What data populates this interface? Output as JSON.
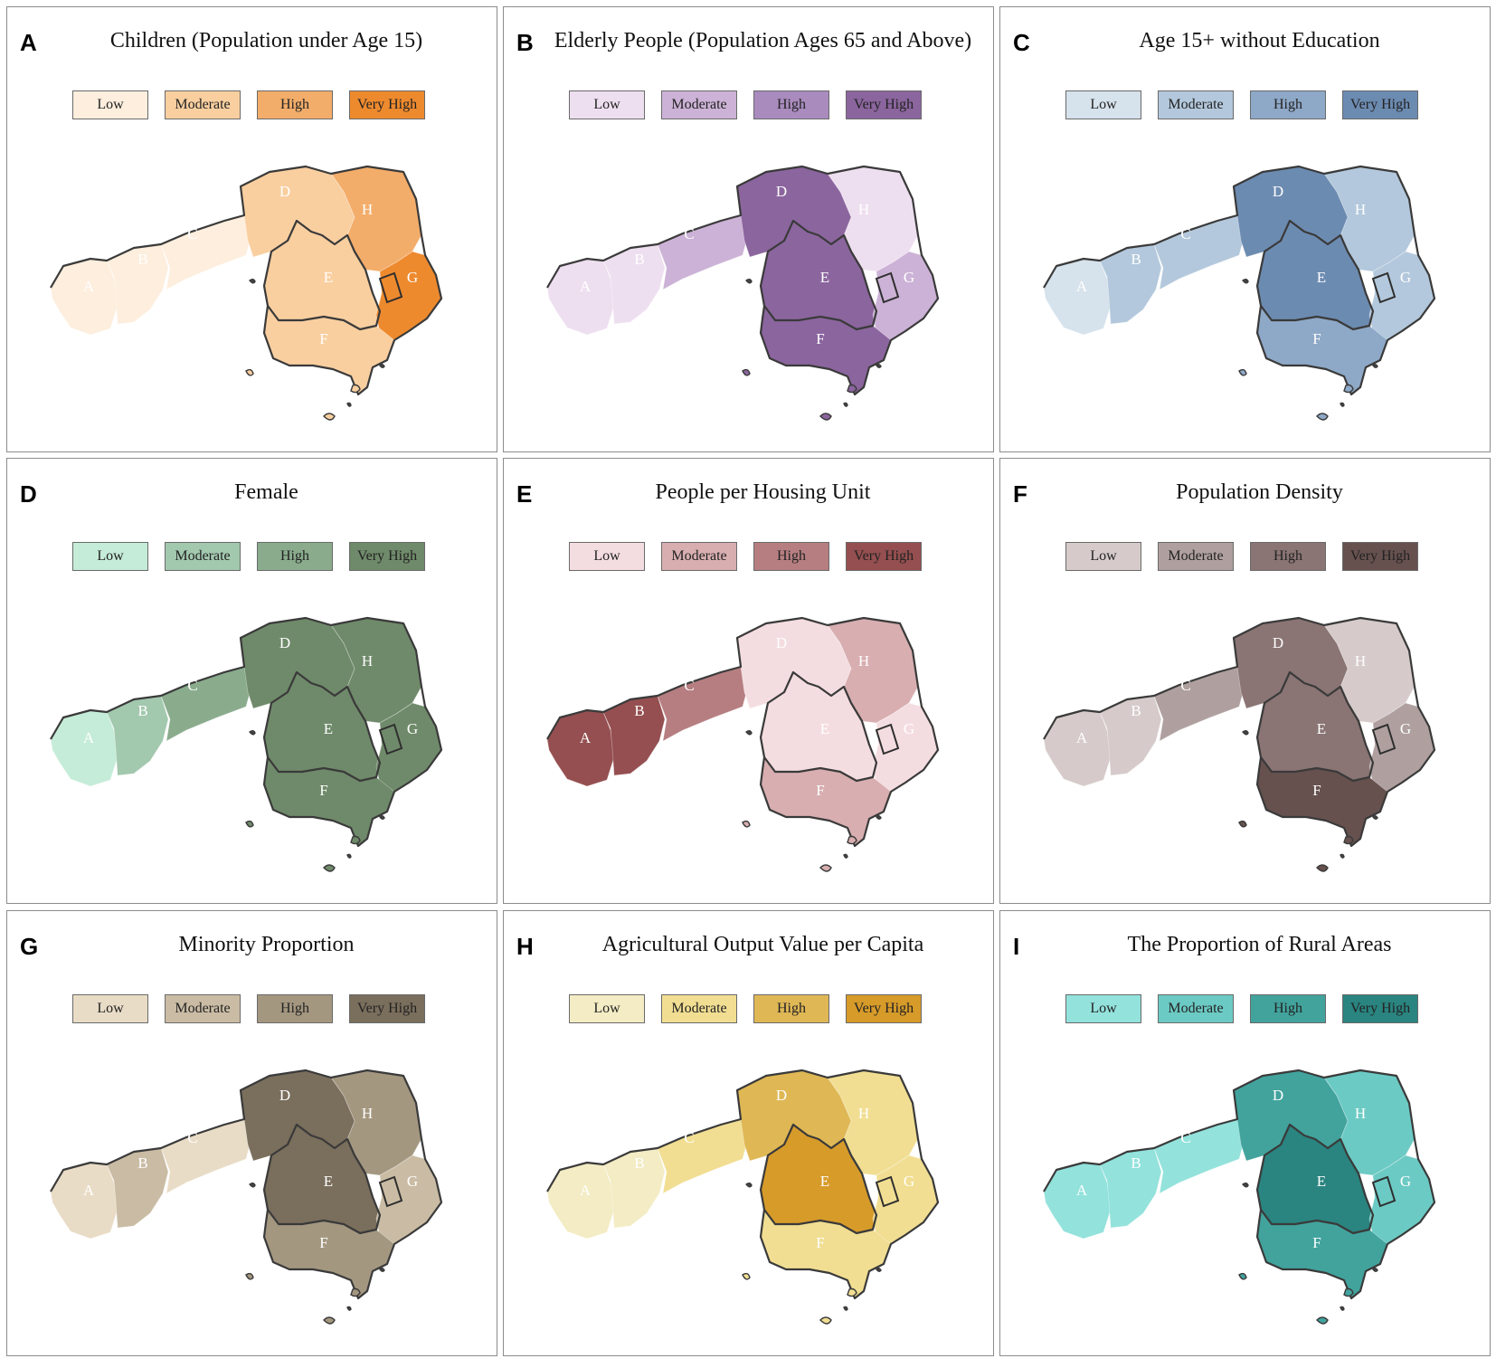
{
  "panels": [
    {
      "letter": "A",
      "title": "Children (Population under Age 15)",
      "legend": [
        "Low",
        "Moderate",
        "High",
        "Very High"
      ],
      "palette": [
        "#fdeedd",
        "#f9cfa0",
        "#f3ad6a",
        "#ee8a2e"
      ],
      "text_light": false,
      "region_levels": {
        "A": "Low",
        "B": "Low",
        "C": "Low",
        "D": "Moderate",
        "E": "Moderate",
        "F": "Moderate",
        "G": "Very High",
        "H": "High"
      }
    },
    {
      "letter": "B",
      "title": "Elderly People (Population Ages 65 and Above)",
      "legend": [
        "Low",
        "Moderate",
        "High",
        "Very High"
      ],
      "palette": [
        "#eedff0",
        "#ccb2d6",
        "#a98bbe",
        "#8b659e"
      ],
      "region_levels": {
        "A": "Low",
        "B": "Low",
        "C": "Moderate",
        "D": "Very High",
        "E": "Very High",
        "F": "Very High",
        "G": "Moderate",
        "H": "Low"
      }
    },
    {
      "letter": "C",
      "title": "Age 15+ without Education",
      "legend": [
        "Low",
        "Moderate",
        "High",
        "Very High"
      ],
      "palette": [
        "#d6e2ec",
        "#b3c8dc",
        "#8ea8c7",
        "#6c8bb1"
      ],
      "region_levels": {
        "A": "Low",
        "B": "Moderate",
        "C": "Moderate",
        "D": "Very High",
        "E": "Very High",
        "F": "High",
        "G": "Moderate",
        "H": "Moderate"
      }
    },
    {
      "letter": "D",
      "title": "Female",
      "legend": [
        "Low",
        "Moderate",
        "High",
        "Very High"
      ],
      "palette": [
        "#c5ecd8",
        "#a2c8ae",
        "#8aac8d",
        "#6f8a6a"
      ],
      "region_levels": {
        "A": "Low",
        "B": "Moderate",
        "C": "High",
        "D": "Very High",
        "E": "Very High",
        "F": "Very High",
        "G": "Very High",
        "H": "Very High"
      }
    },
    {
      "letter": "E",
      "title": "People per Housing Unit",
      "legend": [
        "Low",
        "Moderate",
        "High",
        "Very High"
      ],
      "palette": [
        "#f4dde0",
        "#d8aeb0",
        "#b67e80",
        "#954f50"
      ],
      "region_levels": {
        "A": "Very High",
        "B": "Very High",
        "C": "High",
        "D": "Low",
        "E": "Low",
        "F": "Moderate",
        "G": "Low",
        "H": "Moderate"
      }
    },
    {
      "letter": "F",
      "title": "Population Density",
      "legend": [
        "Low",
        "Moderate",
        "High",
        "Very High"
      ],
      "palette": [
        "#d6cbca",
        "#afa09f",
        "#8a7474",
        "#66514f"
      ],
      "region_levels": {
        "A": "Low",
        "B": "Low",
        "C": "Moderate",
        "D": "High",
        "E": "High",
        "F": "Very High",
        "G": "Moderate",
        "H": "Low"
      }
    },
    {
      "letter": "G",
      "title": "Minority Proportion",
      "legend": [
        "Low",
        "Moderate",
        "High",
        "Very High"
      ],
      "palette": [
        "#e9dcc6",
        "#cabca4",
        "#a49780",
        "#7a6e5c"
      ],
      "region_levels": {
        "A": "Low",
        "B": "Moderate",
        "C": "Low",
        "D": "Very High",
        "E": "Very High",
        "F": "High",
        "G": "Moderate",
        "H": "High"
      }
    },
    {
      "letter": "H",
      "title": "Agricultural Output Value per Capita",
      "legend": [
        "Low",
        "Moderate",
        "High",
        "Very High"
      ],
      "palette": [
        "#f3ecc4",
        "#f1de92",
        "#dfb755",
        "#d79b2a"
      ],
      "region_levels": {
        "A": "Low",
        "B": "Low",
        "C": "Moderate",
        "D": "High",
        "E": "Very High",
        "F": "Moderate",
        "G": "Moderate",
        "H": "Moderate"
      }
    },
    {
      "letter": "I",
      "title": "The Proportion of Rural Areas",
      "legend": [
        "Low",
        "Moderate",
        "High",
        "Very High"
      ],
      "palette": [
        "#93e2dc",
        "#6ccac4",
        "#42a39d",
        "#2a8480"
      ],
      "region_levels": {
        "A": "Low",
        "B": "Low",
        "C": "Low",
        "D": "High",
        "E": "Very High",
        "F": "High",
        "G": "Moderate",
        "H": "Moderate"
      }
    }
  ]
}
